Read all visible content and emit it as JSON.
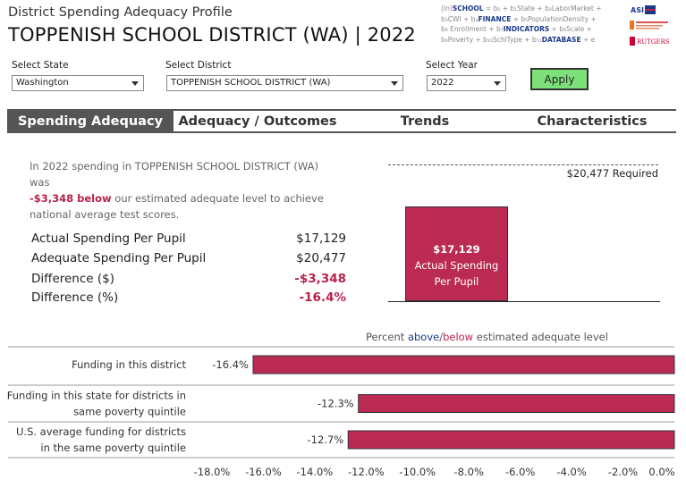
{
  "header": {
    "subtitle": "District Spending Adequacy Profile",
    "title": "TOPPENISH SCHOOL DISTRICT (WA) | 2022"
  },
  "formula": {
    "lines": [
      [
        "(In)",
        "SCHOOL",
        " = b₀ + b₁State + b₂LaborMarket + "
      ],
      [
        "b₃CWI + b₄",
        "FINANCE",
        " + b₅PopulationDensity + "
      ],
      [
        "b₆ Enrollment + b₇",
        "INDICATORS",
        " + b₈Scale + "
      ],
      [
        "b₉Poverty + b₁₀SchlType + b₁₁",
        "DATABASE",
        " + e"
      ]
    ]
  },
  "controls": {
    "state": {
      "label": "Select State",
      "value": "Washington"
    },
    "district": {
      "label": "Select District",
      "value": "TOPPENISH SCHOOL DISTRICT (WA)"
    },
    "year": {
      "label": "Select Year",
      "value": "2022"
    },
    "apply_label": "Apply"
  },
  "tabs": [
    {
      "label": "Spending Adequacy",
      "active": true
    },
    {
      "label": "Adequacy / Outcomes",
      "active": false
    },
    {
      "label": "Trends",
      "active": false
    },
    {
      "label": "Characteristics",
      "active": false
    }
  ],
  "summary": {
    "part1": "In 2022 spending in TOPPENISH SCHOOL DISTRICT (WA) was",
    "highlight": "-$3,348 below",
    "part2": " our estimated adequate level to achieve national average test scores."
  },
  "stats": [
    {
      "label": "Actual Spending Per Pupil",
      "value": "$17,129",
      "negative": false
    },
    {
      "label": "Adequate Spending Per Pupil",
      "value": "$20,477",
      "negative": false
    },
    {
      "label": "Difference ($)",
      "value": "-$3,348",
      "negative": true
    },
    {
      "label": "Difference (%)",
      "value": "-16.4%",
      "negative": true
    }
  ],
  "chart_data": [
    {
      "type": "bar",
      "categories": [
        "Actual Spending Per Pupil"
      ],
      "values": [
        17129
      ],
      "reference_line": {
        "value": 20477,
        "label": "$20,477 Required"
      },
      "bar_value_label": "$17,129",
      "bar_text": "Actual Spending Per Pupil",
      "ylim": [
        0,
        21000
      ],
      "bar_color": "#bb2a52"
    },
    {
      "type": "bar",
      "orientation": "horizontal",
      "title_parts": [
        "Percent ",
        "above",
        "/",
        "below",
        " estimated adequate level"
      ],
      "categories": [
        [
          "Funding in this district"
        ],
        [
          "Funding in this state for districts in",
          "same poverty quintile"
        ],
        [
          "U.S. average funding for districts",
          "in the same poverty quintile"
        ]
      ],
      "values": [
        -16.4,
        -12.3,
        -12.7
      ],
      "value_labels": [
        "-16.4%",
        "-12.3%",
        "-12.7%"
      ],
      "xlim": [
        -18,
        0
      ],
      "xticks": [
        -18,
        -16,
        -14,
        -12,
        -10,
        -8,
        -6,
        -4,
        -2,
        0
      ],
      "xtick_labels": [
        "-18.0%",
        "-16.0%",
        "-14.0%",
        "-12.0%",
        "-10.0%",
        "-8.0%",
        "-6.0%",
        "-4.0%",
        "-2.0%",
        "0.0%"
      ],
      "bar_color": "#bb2a52"
    }
  ],
  "colors": {
    "accent_negative": "#b8234b",
    "accent_positive": "#1a3a8a",
    "apply_green": "#7ee07a",
    "tab_active": "#555555"
  }
}
